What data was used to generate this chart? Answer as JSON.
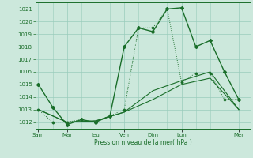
{
  "xlabel": "Pression niveau de la mer( hPa )",
  "ylim": [
    1011.5,
    1021.5
  ],
  "yticks": [
    1012,
    1013,
    1014,
    1015,
    1016,
    1017,
    1018,
    1019,
    1020,
    1021
  ],
  "x_day_labels": [
    "Sam",
    "Mar",
    "Jeu",
    "Ven",
    "Dim",
    "Lun",
    "Mer"
  ],
  "x_day_positions": [
    0,
    2,
    4,
    6,
    8,
    10,
    14
  ],
  "xlim": [
    -0.2,
    14.8
  ],
  "bg_color": "#cce8dc",
  "grid_color": "#99ccbb",
  "line_color": "#1a6e2a",
  "series1_x": [
    0,
    1,
    2,
    3,
    4,
    5,
    6,
    7,
    8,
    9,
    10,
    11,
    12,
    13,
    14
  ],
  "series1_y": [
    1015.0,
    1013.2,
    1011.8,
    1012.2,
    1012.0,
    1012.5,
    1018.0,
    1019.5,
    1019.2,
    1021.0,
    1021.1,
    1018.0,
    1018.5,
    1016.0,
    1013.8
  ],
  "series2_x": [
    0,
    1,
    2,
    3,
    4,
    5,
    6,
    7,
    8,
    9,
    10,
    11,
    12,
    13,
    14
  ],
  "series2_y": [
    1013.0,
    1012.0,
    1012.0,
    1012.2,
    1012.0,
    1012.5,
    1013.0,
    1019.5,
    1019.5,
    1021.0,
    1015.2,
    1015.9,
    1015.9,
    1013.8,
    1013.8
  ],
  "series3_x": [
    0,
    2,
    4,
    6,
    8,
    10,
    12,
    14
  ],
  "series3_y": [
    1013.0,
    1012.0,
    1012.1,
    1012.8,
    1013.8,
    1015.0,
    1015.5,
    1013.0
  ],
  "series4_x": [
    0,
    2,
    4,
    6,
    8,
    10,
    12,
    14
  ],
  "series4_y": [
    1013.0,
    1012.0,
    1012.1,
    1012.8,
    1014.5,
    1015.3,
    1016.0,
    1013.0
  ]
}
